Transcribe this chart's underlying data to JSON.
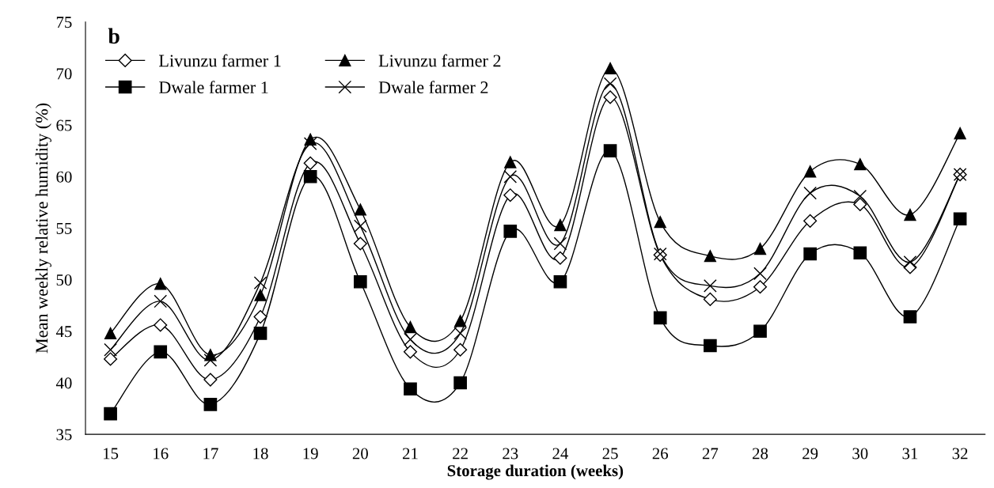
{
  "chart_data": {
    "type": "line",
    "title": "b",
    "xlabel": "Storage duration (weeks)",
    "ylabel": "Mean weekly relative humidity (%)",
    "categories": [
      "15",
      "16",
      "17",
      "18",
      "19",
      "20",
      "21",
      "22",
      "23",
      "24",
      "25",
      "26",
      "27",
      "28",
      "29",
      "30",
      "31",
      "32"
    ],
    "ylim": [
      35,
      75
    ],
    "yticks": [
      35,
      40,
      45,
      50,
      55,
      60,
      65,
      70,
      75
    ],
    "grid": false,
    "legend": "top left",
    "series": [
      {
        "name": "Livunzu farmer 1",
        "color": "#000000",
        "marker": "diamond",
        "values": [
          42.3,
          45.6,
          40.3,
          46.4,
          61.3,
          53.5,
          43.0,
          43.2,
          58.2,
          52.1,
          67.7,
          52.4,
          48.1,
          49.3,
          55.7,
          57.3,
          51.2,
          60.2
        ]
      },
      {
        "name": "Livunzu farmer 2",
        "color": "#000000",
        "marker": "triangle",
        "values": [
          44.8,
          49.6,
          42.7,
          48.5,
          63.6,
          56.8,
          45.4,
          46.0,
          61.4,
          55.3,
          70.5,
          55.6,
          52.3,
          53.0,
          60.5,
          61.2,
          56.3,
          64.2
        ]
      },
      {
        "name": "Dwale farmer 1",
        "color": "#000000",
        "marker": "square",
        "values": [
          37.0,
          43.0,
          37.9,
          44.8,
          60.0,
          49.8,
          39.4,
          40.0,
          54.7,
          49.8,
          62.5,
          46.3,
          43.6,
          45.0,
          52.5,
          52.6,
          46.4,
          55.9
        ]
      },
      {
        "name": "Dwale farmer 2",
        "color": "#000000",
        "marker": "cross",
        "values": [
          43.2,
          47.9,
          42.2,
          49.7,
          63.2,
          55.2,
          44.2,
          44.8,
          60.0,
          53.5,
          69.0,
          52.5,
          49.4,
          50.6,
          58.4,
          58.1,
          51.7,
          60.2
        ]
      }
    ]
  }
}
